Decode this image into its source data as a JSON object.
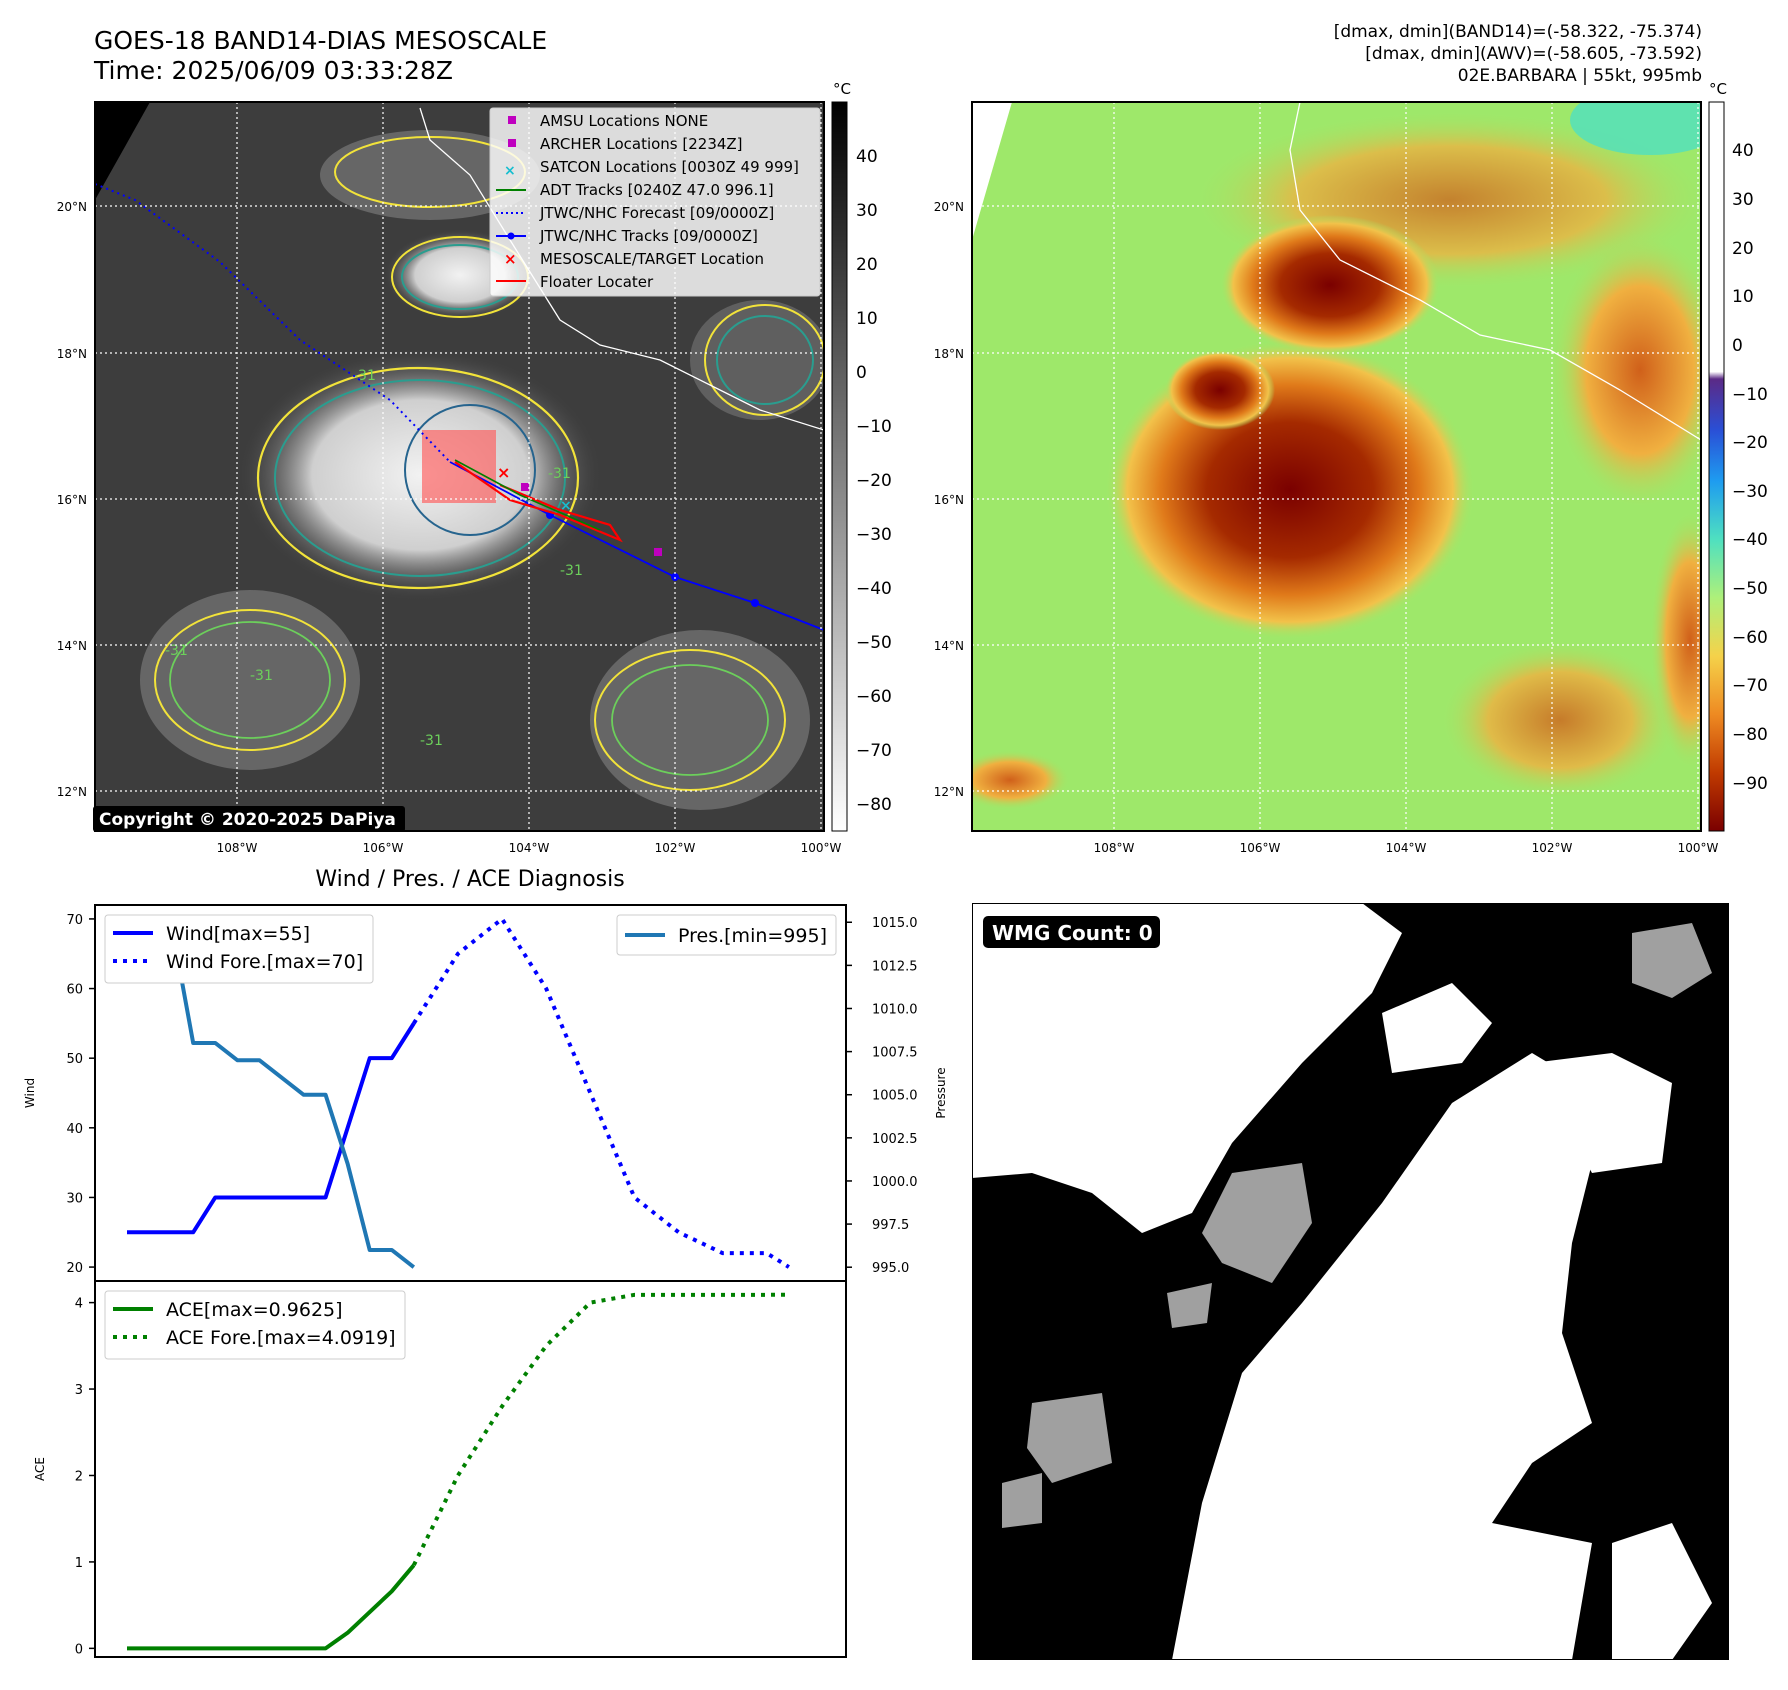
{
  "header": {
    "title_line1": "GOES-18 BAND14-DIAS MESOSCALE",
    "title_line2": "Time: 2025/06/09 03:33:28Z",
    "info_line1": "[dmax, dmin](BAND14)=(-58.322, -75.374)",
    "info_line2": "[dmax, dmin](AWV)=(-58.605, -73.592)",
    "info_line3": "02E.BARBARA | 55kt, 995mb"
  },
  "map_axes": {
    "lat_labels": [
      "20°N",
      "18°N",
      "16°N",
      "14°N",
      "12°N"
    ],
    "lon_labels": [
      "108°W",
      "106°W",
      "104°W",
      "102°W",
      "100°W"
    ]
  },
  "ir_panel": {
    "copyright": "Copyright © 2020-2025 DaPiya",
    "colorbar_unit": "°C",
    "colorbar_ticks": [
      "40",
      "30",
      "20",
      "10",
      "0",
      "−10",
      "−20",
      "−30",
      "−40",
      "−50",
      "−60",
      "−70",
      "−80"
    ],
    "contour_labels": [
      "-31",
      "-31",
      "-31",
      "-31",
      "-31",
      "-31"
    ],
    "legend": [
      {
        "label": "AMSU Locations NONE",
        "color": "#bf00bf",
        "marker": "square"
      },
      {
        "label": "ARCHER Locations [2234Z]",
        "color": "#bf00bf",
        "marker": "square"
      },
      {
        "label": "SATCON Locations [0030Z 49 999]",
        "color": "#17becf",
        "marker": "x"
      },
      {
        "label": "ADT Tracks [0240Z 47.0 996.1]",
        "color": "#008000",
        "marker": "line"
      },
      {
        "label": "JTWC/NHC Forecast [09/0000Z]",
        "color": "#0000ff",
        "marker": "dotted"
      },
      {
        "label": "JTWC/NHC Tracks [09/0000Z]",
        "color": "#0000ff",
        "marker": "line-dot"
      },
      {
        "label": "MESOSCALE/TARGET Location",
        "color": "#ff0000",
        "marker": "x"
      },
      {
        "label": "Floater Locater",
        "color": "#ff0000",
        "marker": "line"
      }
    ]
  },
  "awv_panel": {
    "colorbar_unit": "°C",
    "colorbar_ticks": [
      "40",
      "30",
      "20",
      "10",
      "0",
      "−10",
      "−20",
      "−30",
      "−40",
      "−50",
      "−60",
      "−70",
      "−80",
      "−90"
    ]
  },
  "wmg_panel": {
    "badge": "WMG Count: 0"
  },
  "chart_data": [
    {
      "type": "line",
      "title": "Wind / Pres. / ACE Diagnosis",
      "ylabel": "Wind",
      "ylabel_right": "Pressure",
      "ylim": [
        18,
        72
      ],
      "ylim_right": [
        994.2,
        1016.0
      ],
      "yticks": [
        20,
        30,
        40,
        50,
        60,
        70
      ],
      "yticks_right": [
        "995.0",
        "997.5",
        "1000.0",
        "1002.5",
        "1005.0",
        "1007.5",
        "1010.0",
        "1012.5",
        "1015.0"
      ],
      "series": [
        {
          "name": "Wind[max=55]",
          "color": "#0000ff",
          "style": "solid",
          "axis": "left",
          "x": [
            0,
            1,
            2,
            3,
            4,
            5,
            6,
            7,
            8,
            9,
            10,
            11,
            12,
            13
          ],
          "values": [
            25,
            25,
            25,
            25,
            30,
            30,
            30,
            30,
            30,
            30,
            40,
            50,
            50,
            55
          ]
        },
        {
          "name": "Wind Fore.[max=70]",
          "color": "#0000ff",
          "style": "dotted",
          "axis": "left",
          "x": [
            13,
            15,
            17,
            19,
            21,
            23,
            25,
            27,
            29,
            30
          ],
          "values": [
            55,
            65,
            70,
            60,
            45,
            30,
            25,
            22,
            22,
            20
          ]
        },
        {
          "name": "Pres.[min=995]",
          "color": "#1f77b4",
          "style": "solid",
          "axis": "right",
          "x": [
            0,
            1,
            2,
            3,
            4,
            5,
            6,
            7,
            8,
            9,
            10,
            11,
            12,
            13
          ],
          "values": [
            1015,
            1015,
            1015,
            1008,
            1008,
            1007,
            1007,
            1006,
            1005,
            1005,
            1001,
            996,
            996,
            995
          ]
        }
      ]
    },
    {
      "type": "line",
      "ylabel": "ACE",
      "ylim": [
        -0.1,
        4.25
      ],
      "yticks": [
        0,
        1,
        2,
        3,
        4
      ],
      "series": [
        {
          "name": "ACE[max=0.9625]",
          "color": "#008000",
          "style": "solid",
          "x": [
            0,
            2,
            4,
            6,
            8,
            9,
            10,
            11,
            12,
            13
          ],
          "values": [
            0,
            0,
            0,
            0,
            0,
            0,
            0.18,
            0.42,
            0.66,
            0.9625
          ]
        },
        {
          "name": "ACE Fore.[max=4.0919]",
          "color": "#008000",
          "style": "dotted",
          "x": [
            13,
            15,
            17,
            19,
            21,
            23,
            25,
            27,
            29,
            30
          ],
          "values": [
            0.9625,
            2.0,
            2.8,
            3.5,
            4.0,
            4.09,
            4.09,
            4.09,
            4.09,
            4.0919
          ]
        }
      ]
    }
  ]
}
